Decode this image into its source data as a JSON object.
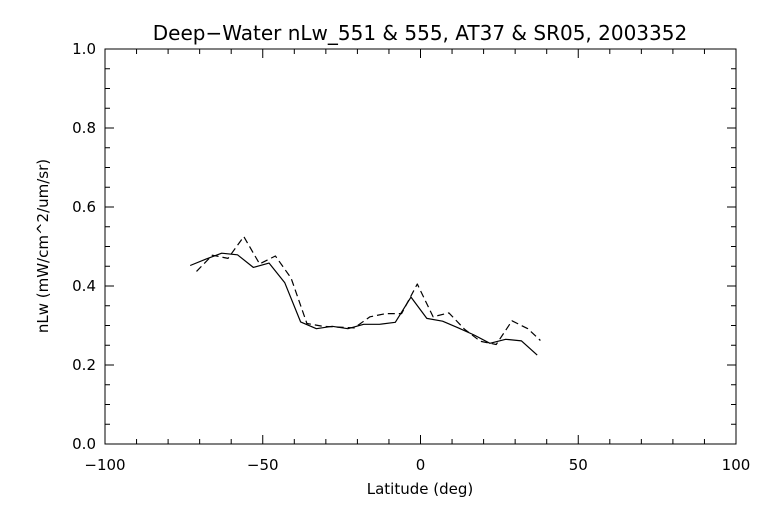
{
  "chart_data": {
    "type": "line",
    "title": "Deep−Water nLw_551 & 555, AT37 & SR05, 2003352",
    "xlabel": "Latitude (deg)",
    "ylabel": "nLw (mW/cm^2/um/sr)",
    "xlim": [
      -100,
      100
    ],
    "ylim": [
      0.0,
      1.0
    ],
    "xticks": [
      -100,
      -50,
      0,
      50,
      100
    ],
    "xtick_labels": [
      "−100",
      "−50",
      "0",
      "50",
      "100"
    ],
    "yticks": [
      0.0,
      0.2,
      0.4,
      0.6,
      0.8,
      1.0
    ],
    "ytick_labels": [
      "0.0",
      "0.2",
      "0.4",
      "0.6",
      "0.8",
      "1.0"
    ],
    "x_minor_step": 10,
    "y_minor_step": 0.05,
    "grid": false,
    "series": [
      {
        "style": "solid",
        "color": "#000000",
        "x": [
          -73,
          -68,
          -63,
          -58,
          -53,
          -48,
          -43,
          -38,
          -33,
          -28,
          -23,
          -18,
          -13,
          -8,
          -3,
          2,
          7,
          12,
          17,
          22,
          27,
          32,
          37
        ],
        "y": [
          0.452,
          0.468,
          0.483,
          0.479,
          0.447,
          0.458,
          0.408,
          0.309,
          0.292,
          0.298,
          0.292,
          0.303,
          0.303,
          0.308,
          0.372,
          0.318,
          0.311,
          0.294,
          0.276,
          0.255,
          0.265,
          0.261,
          0.225
        ]
      },
      {
        "style": "dashed",
        "color": "#000000",
        "x": [
          -71,
          -66,
          -61,
          -56,
          -51,
          -46,
          -41,
          -36,
          -31,
          -26,
          -21,
          -16,
          -11,
          -6,
          -1,
          4,
          9,
          14,
          19,
          24,
          29,
          34,
          38
        ],
        "y": [
          0.437,
          0.478,
          0.47,
          0.525,
          0.456,
          0.476,
          0.42,
          0.305,
          0.298,
          0.296,
          0.294,
          0.322,
          0.33,
          0.33,
          0.405,
          0.322,
          0.332,
          0.29,
          0.26,
          0.252,
          0.312,
          0.292,
          0.262
        ]
      }
    ]
  }
}
